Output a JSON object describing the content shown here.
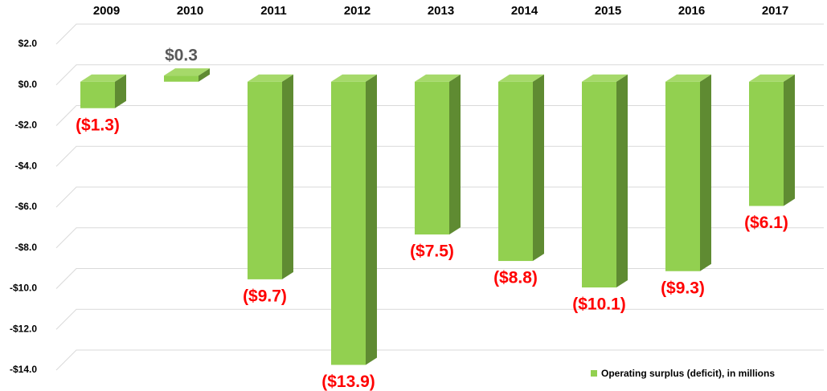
{
  "chart_data": {
    "type": "bar3d",
    "categories": [
      "2009",
      "2010",
      "2011",
      "2012",
      "2013",
      "2014",
      "2015",
      "2016",
      "2017"
    ],
    "series": [
      {
        "name": "Operating surplus (deficit), in millions",
        "color": "#92d050",
        "side_color": "#5f8b32",
        "top_color": "#a6d96a",
        "values": [
          -1.3,
          0.3,
          -9.7,
          -13.9,
          -7.5,
          -8.8,
          -10.1,
          -9.3,
          -6.1
        ],
        "value_labels": [
          "($1.3)",
          "$0.3",
          "($9.7)",
          "($13.9)",
          "($7.5)",
          "($8.8)",
          "($10.1)",
          "($9.3)",
          "($6.1)"
        ]
      }
    ],
    "label_colors": {
      "negative": "#ff0000",
      "positive": "#595959"
    },
    "ylim": [
      -14,
      2
    ],
    "yticks": [
      {
        "value": 2,
        "label": "$2.0"
      },
      {
        "value": 0,
        "label": "$0.0"
      },
      {
        "value": -2,
        "label": "-$2.0"
      },
      {
        "value": -4,
        "label": "-$4.0"
      },
      {
        "value": -6,
        "label": "-$6.0"
      },
      {
        "value": -8,
        "label": "-$8.0"
      },
      {
        "value": -10,
        "label": "-$10.0"
      },
      {
        "value": -12,
        "label": "-$12.0"
      },
      {
        "value": -14,
        "label": "-$14.0"
      }
    ],
    "grid": true,
    "legend": "bottom-right"
  }
}
